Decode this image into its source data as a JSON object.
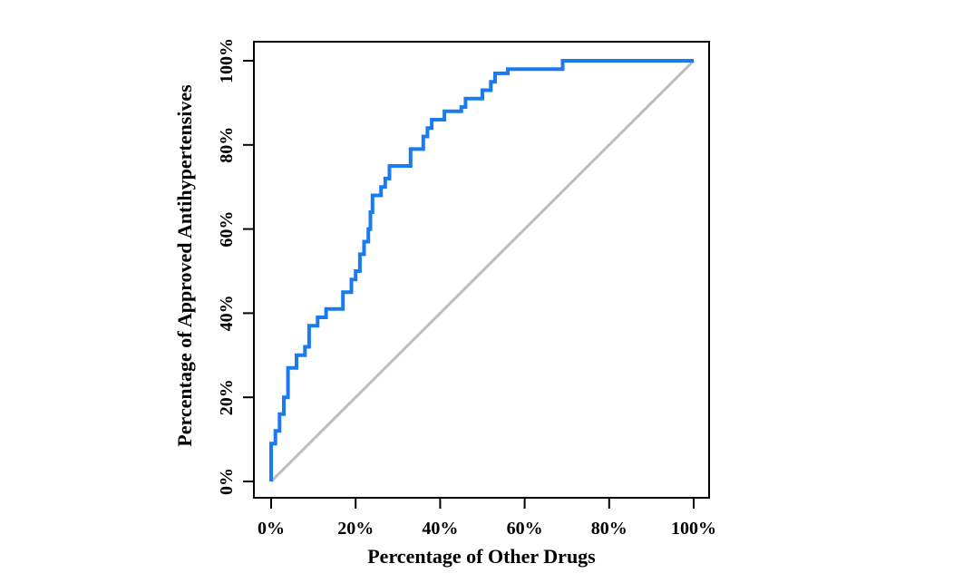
{
  "chart_data": {
    "type": "line",
    "title": "",
    "xlabel": "Percentage of Other Drugs",
    "ylabel": "Percentage of Approved Antihypertensives",
    "xlim": [
      0,
      100
    ],
    "ylim": [
      0,
      100
    ],
    "x_ticks": [
      "0%",
      "20%",
      "40%",
      "60%",
      "80%",
      "100%"
    ],
    "y_ticks": [
      "0%",
      "20%",
      "40%",
      "60%",
      "80%",
      "100%"
    ],
    "grid": false,
    "legend": "none",
    "colors": {
      "curve": "#1a7bf0",
      "reference": "#bdbdbd",
      "axis": "#000000"
    },
    "series": [
      {
        "style": "step",
        "x": [
          0,
          0,
          1,
          1,
          2,
          2,
          3,
          3,
          4,
          4,
          6,
          6,
          8,
          8,
          9,
          9,
          11,
          11,
          13,
          13,
          17,
          17,
          19,
          19,
          20,
          20,
          21,
          21,
          22,
          22,
          23,
          23,
          23.5,
          23.5,
          24,
          24,
          26,
          26,
          27,
          27,
          28,
          28,
          33,
          33,
          36,
          36,
          37,
          37,
          38,
          38,
          41,
          41,
          45,
          45,
          46,
          46,
          50,
          50,
          52,
          52,
          53,
          53,
          56,
          56,
          69,
          69,
          100
        ],
        "y": [
          0,
          9,
          9,
          12,
          12,
          16,
          16,
          20,
          20,
          27,
          27,
          30,
          30,
          32,
          32,
          37,
          37,
          39,
          39,
          41,
          41,
          45,
          45,
          48,
          48,
          50,
          50,
          54,
          54,
          57,
          57,
          60,
          60,
          64,
          64,
          68,
          68,
          70,
          70,
          72,
          72,
          75,
          75,
          79,
          79,
          82,
          82,
          84,
          84,
          86,
          86,
          88,
          88,
          89,
          89,
          91,
          91,
          93,
          93,
          95,
          95,
          97,
          97,
          98,
          98,
          100,
          100
        ]
      },
      {
        "style": "reference",
        "x": [
          0,
          100
        ],
        "y": [
          0,
          100
        ]
      }
    ]
  }
}
